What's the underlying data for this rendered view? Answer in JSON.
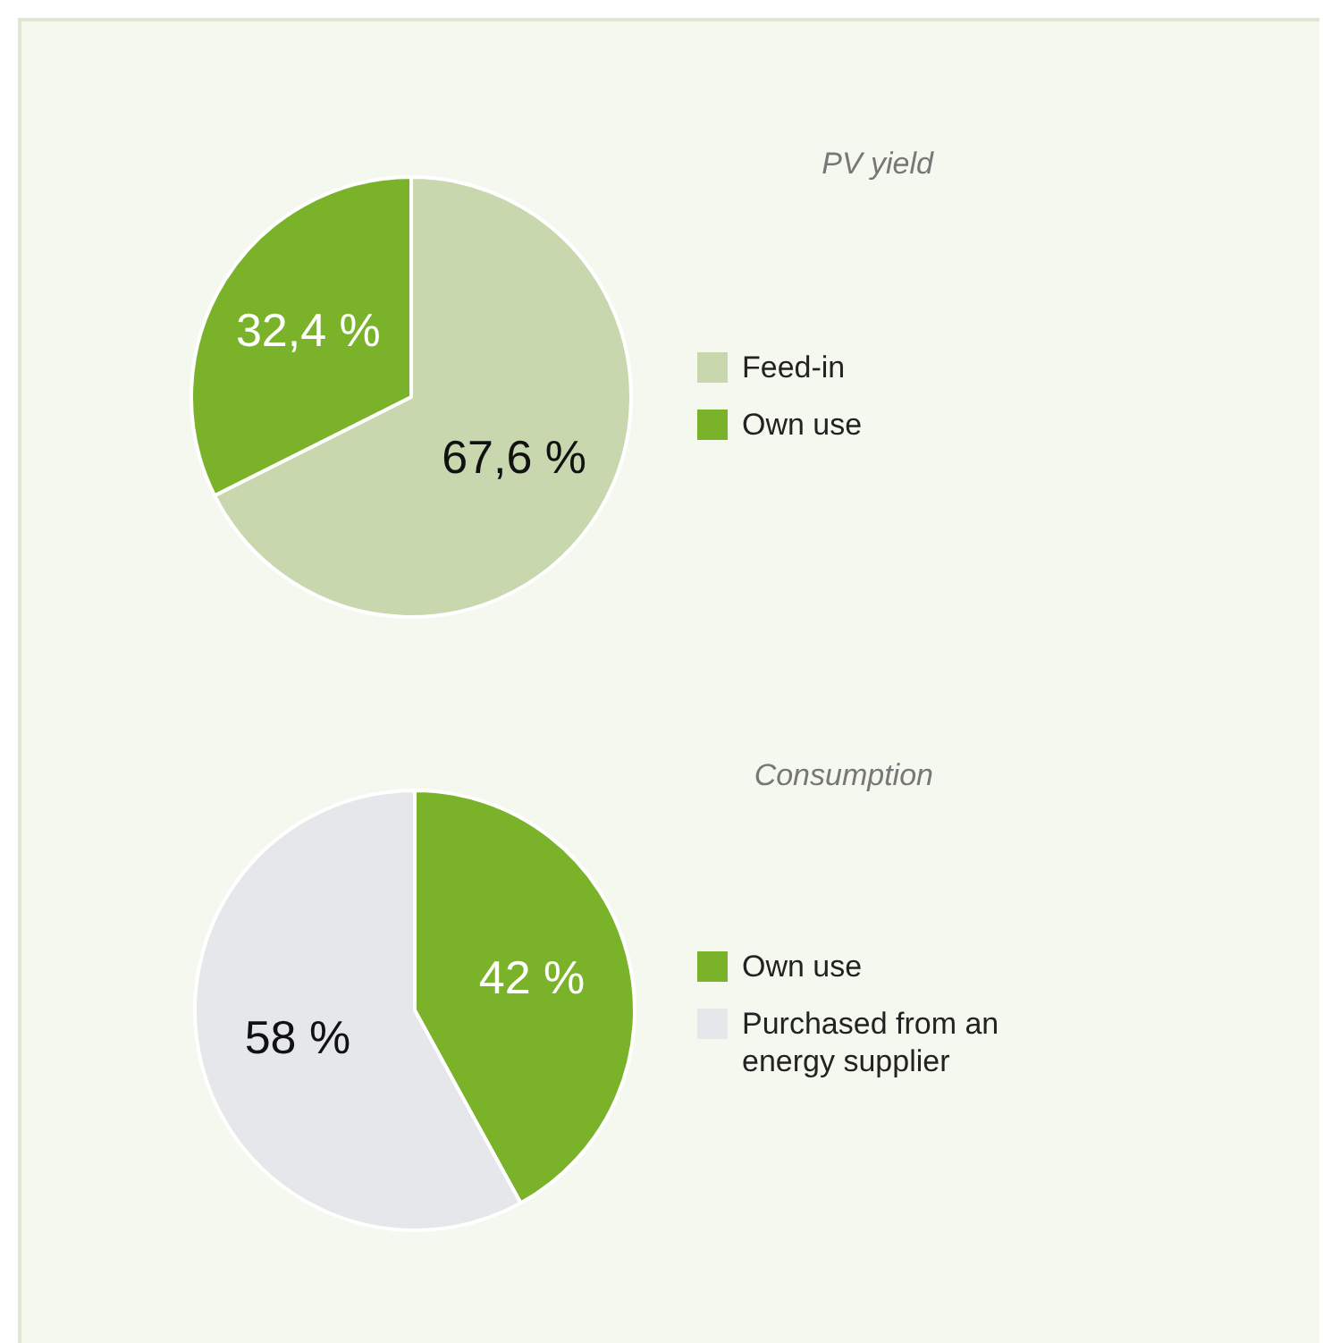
{
  "chart_data": [
    {
      "type": "pie",
      "title": "PV yield",
      "categories": [
        "Feed-in",
        "Own use"
      ],
      "values": [
        67.6,
        32.4
      ],
      "colors": [
        "#c8d7ad",
        "#7ab32a"
      ],
      "value_labels": [
        "67,6 %",
        "32,4 %"
      ],
      "legend": "right"
    },
    {
      "type": "pie",
      "title": "Consumption",
      "categories": [
        "Own use",
        "Purchased from an energy supplier"
      ],
      "values": [
        42,
        58
      ],
      "colors": [
        "#7ab32a",
        "#e6e7ea"
      ],
      "value_labels": [
        "42 %",
        "58 %"
      ],
      "legend": "right"
    }
  ]
}
